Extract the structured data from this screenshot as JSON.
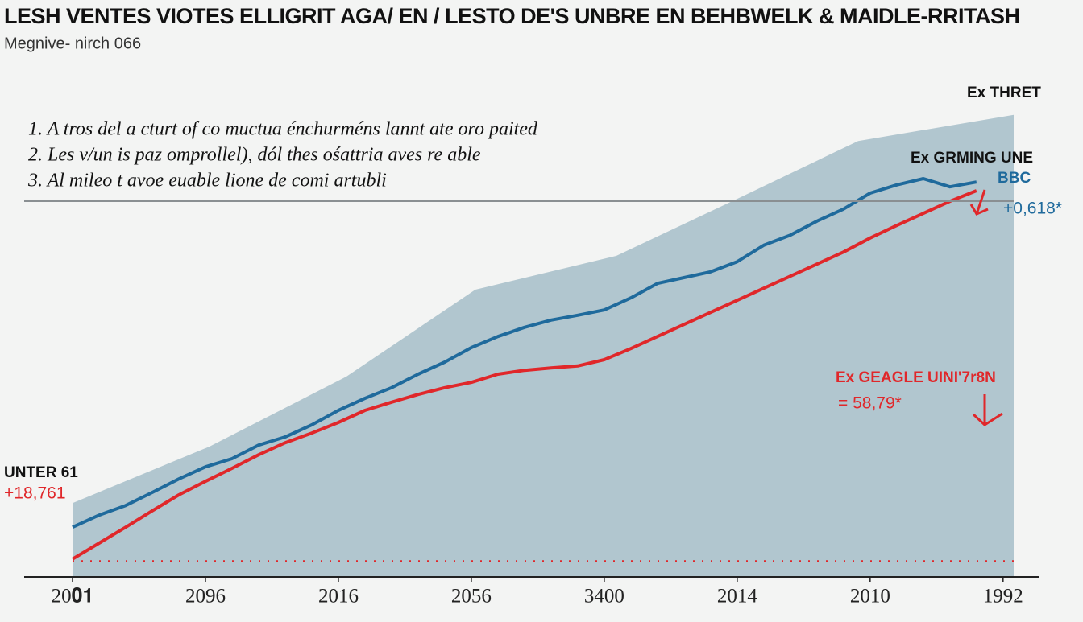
{
  "chart_data": {
    "type": "line",
    "title": "LESH VENTES VIOTES ELLIGRIT AGA/ EN / LESTO DE'S UNBRE EN BEHBWELK & MAIDLE-RRITASH",
    "subtitle": "Megnive- nirch 066",
    "notes": [
      "1.  A tros del a cturt of co muctua énchurméns lannt ate oro paited",
      "2.  Les v/un is paz omprollel), dól thes ośattria aves re able",
      "3.  Al mileo t avoe euable lione de comi artubli"
    ],
    "x": [
      0,
      0.2,
      0.4,
      0.6,
      0.8,
      1,
      1.2,
      1.4,
      1.6,
      1.8,
      2,
      2.2,
      2.4,
      2.6,
      2.8,
      3,
      3.2,
      3.4,
      3.6,
      3.8,
      4,
      4.2,
      4.4,
      4.6,
      4.8,
      5,
      5.2,
      5.4,
      5.6,
      5.8,
      6,
      6.2,
      6.4,
      6.6,
      6.8
    ],
    "series": [
      {
        "name": "Ex GRMING UNE",
        "color": "#1f6a9c",
        "values": [
          10.3,
          12.8,
          14.8,
          17.5,
          20.3,
          22.8,
          24.5,
          27.3,
          29,
          31.5,
          34.5,
          37,
          39.2,
          42,
          44.5,
          47.5,
          49.8,
          51.7,
          53.2,
          54.2,
          55.3,
          57.8,
          60.8,
          62,
          63.2,
          65.3,
          68.7,
          70.8,
          73.7,
          76.2,
          79.5,
          81.2,
          82.5,
          80.8,
          81.8
        ]
      },
      {
        "name": "Ex GEAGLE UINI'7r8N",
        "color": "#e0272a",
        "values": [
          3.7,
          7,
          10.3,
          13.7,
          17,
          19.8,
          22.5,
          25.3,
          27.8,
          29.8,
          32,
          34.5,
          36.2,
          37.8,
          39.2,
          40.3,
          42,
          42.8,
          43.3,
          43.7,
          45,
          47.3,
          49.8,
          52.3,
          54.8,
          57.3,
          59.8,
          62.3,
          64.8,
          67.3,
          70.2,
          72.8,
          75.3,
          77.8,
          80
        ]
      }
    ],
    "area": {
      "name": "Ex THRET",
      "color": "#b1c6cf",
      "x": [
        0,
        1.03,
        2.06,
        3.03,
        4.09,
        5.03,
        5.91,
        7.08
      ],
      "values": [
        15.3,
        27,
        41.5,
        59.5,
        66.5,
        78.7,
        90.3,
        95.7
      ]
    },
    "reference_line": {
      "value": 3.3,
      "color": "#e0272a"
    },
    "xlim": [
      0,
      7.08
    ],
    "ylim": [
      0,
      100
    ],
    "xticks": [
      {
        "value": 0,
        "label": "20𝟎𝟏"
      },
      {
        "value": 1,
        "label": "2096"
      },
      {
        "value": 2,
        "label": "2016"
      },
      {
        "value": 3,
        "label": "2056"
      },
      {
        "value": 4,
        "label": "3400"
      },
      {
        "value": 5,
        "label": "2014"
      },
      {
        "value": 6,
        "label": "2010"
      },
      {
        "value": 7,
        "label": "1992"
      }
    ],
    "annotations": {
      "left_label": "UNTER 61",
      "left_value": "+18,761",
      "top_right": "Ex THRET",
      "blue_tag": "BBC",
      "blue_value": "+0,618*",
      "red_value": "= 58,79*"
    }
  }
}
